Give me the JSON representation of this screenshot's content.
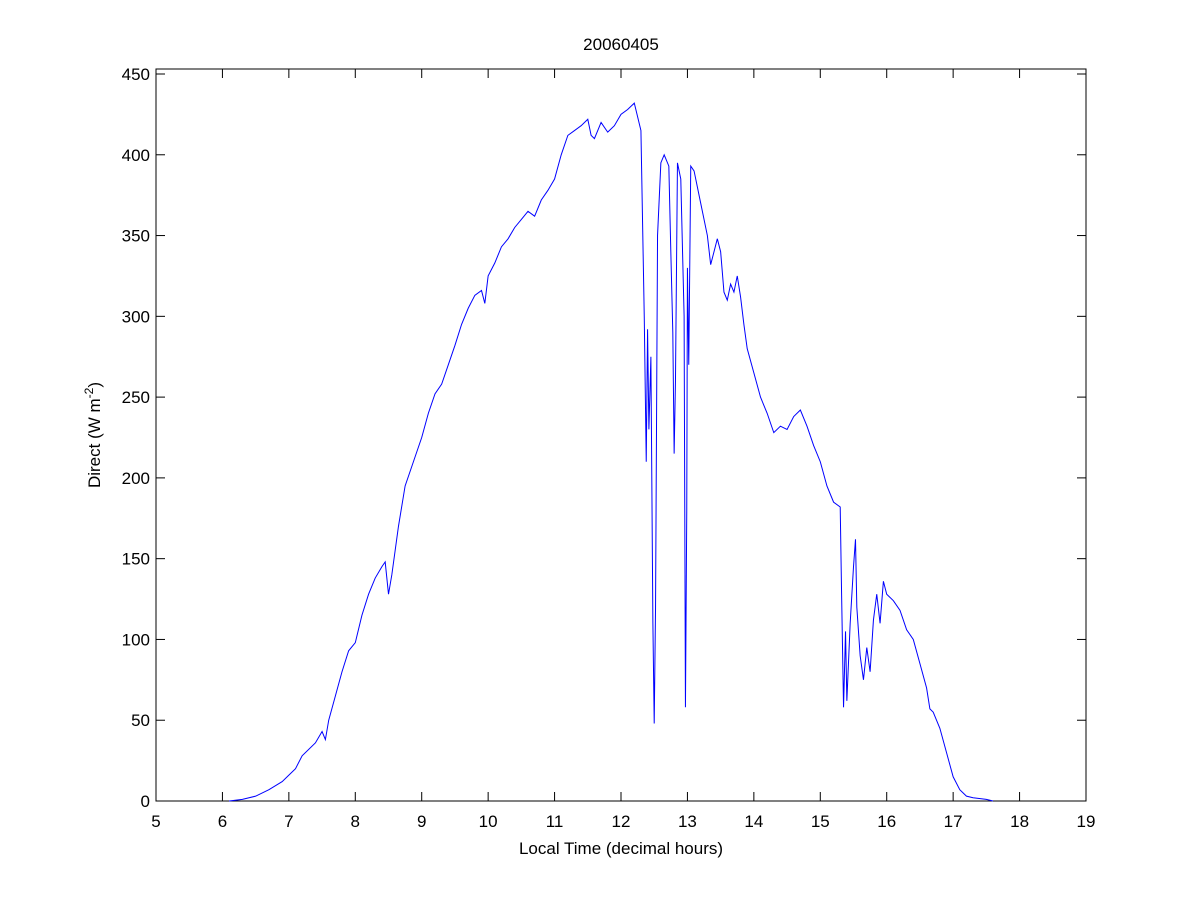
{
  "chart_data": {
    "type": "line",
    "title": "20060405",
    "xlabel": "Local Time (decimal hours)",
    "ylabel": {
      "text": "Direct (W m",
      "superscript": "-2",
      "suffix": ")"
    },
    "xlim": [
      5,
      19
    ],
    "xticks": [
      5,
      6,
      7,
      8,
      9,
      10,
      11,
      12,
      13,
      14,
      15,
      16,
      17,
      18,
      19
    ],
    "ylim": [
      0,
      450
    ],
    "yticks": [
      0,
      50,
      100,
      150,
      200,
      250,
      300,
      350,
      400,
      450
    ],
    "series": [
      {
        "color": "#0000ff",
        "x": [
          6.1,
          6.3,
          6.5,
          6.7,
          6.9,
          7.0,
          7.1,
          7.2,
          7.4,
          7.5,
          7.55,
          7.6,
          7.7,
          7.8,
          7.9,
          8.0,
          8.1,
          8.2,
          8.3,
          8.4,
          8.45,
          8.5,
          8.55,
          8.65,
          8.75,
          8.9,
          9.0,
          9.1,
          9.2,
          9.3,
          9.4,
          9.5,
          9.6,
          9.7,
          9.8,
          9.9,
          9.95,
          10.0,
          10.1,
          10.2,
          10.3,
          10.4,
          10.5,
          10.6,
          10.7,
          10.8,
          10.9,
          11.0,
          11.1,
          11.2,
          11.3,
          11.4,
          11.5,
          11.55,
          11.6,
          11.7,
          11.8,
          11.9,
          12.0,
          12.1,
          12.2,
          12.3,
          12.35,
          12.38,
          12.4,
          12.42,
          12.45,
          12.48,
          12.5,
          12.52,
          12.55,
          12.6,
          12.65,
          12.72,
          12.75,
          12.78,
          12.8,
          12.82,
          12.85,
          12.9,
          12.95,
          12.97,
          12.99,
          13.0,
          13.02,
          13.05,
          13.1,
          13.2,
          13.3,
          13.35,
          13.4,
          13.45,
          13.5,
          13.55,
          13.6,
          13.65,
          13.7,
          13.75,
          13.8,
          13.85,
          13.9,
          14.0,
          14.1,
          14.2,
          14.3,
          14.4,
          14.5,
          14.6,
          14.7,
          14.8,
          14.9,
          15.0,
          15.1,
          15.2,
          15.3,
          15.32,
          15.35,
          15.38,
          15.4,
          15.45,
          15.5,
          15.53,
          15.55,
          15.6,
          15.65,
          15.7,
          15.75,
          15.8,
          15.85,
          15.9,
          15.95,
          16.0,
          16.1,
          16.2,
          16.3,
          16.4,
          16.5,
          16.6,
          16.65,
          16.7,
          16.8,
          16.9,
          17.0,
          17.1,
          17.2,
          17.3,
          17.5,
          17.6
        ],
        "values": [
          0,
          1,
          3,
          7,
          12,
          16,
          20,
          28,
          36,
          43,
          38,
          50,
          65,
          80,
          93,
          98,
          115,
          128,
          138,
          145,
          148,
          128,
          140,
          170,
          195,
          213,
          225,
          240,
          252,
          258,
          270,
          282,
          295,
          305,
          313,
          316,
          308,
          325,
          333,
          343,
          348,
          355,
          360,
          365,
          362,
          372,
          378,
          385,
          400,
          412,
          415,
          418,
          422,
          412,
          410,
          420,
          414,
          418,
          425,
          428,
          432,
          415,
          300,
          210,
          292,
          230,
          275,
          110,
          48,
          120,
          350,
          395,
          400,
          393,
          340,
          290,
          215,
          260,
          395,
          385,
          300,
          58,
          180,
          330,
          270,
          393,
          390,
          370,
          350,
          332,
          340,
          348,
          340,
          315,
          310,
          320,
          315,
          325,
          312,
          295,
          280,
          265,
          250,
          240,
          228,
          232,
          230,
          238,
          242,
          232,
          220,
          210,
          195,
          185,
          182,
          130,
          58,
          105,
          62,
          110,
          145,
          162,
          120,
          90,
          75,
          95,
          80,
          112,
          128,
          110,
          136,
          128,
          124,
          118,
          106,
          100,
          85,
          70,
          57,
          55,
          45,
          30,
          15,
          7,
          3,
          2,
          1,
          0
        ]
      }
    ]
  }
}
